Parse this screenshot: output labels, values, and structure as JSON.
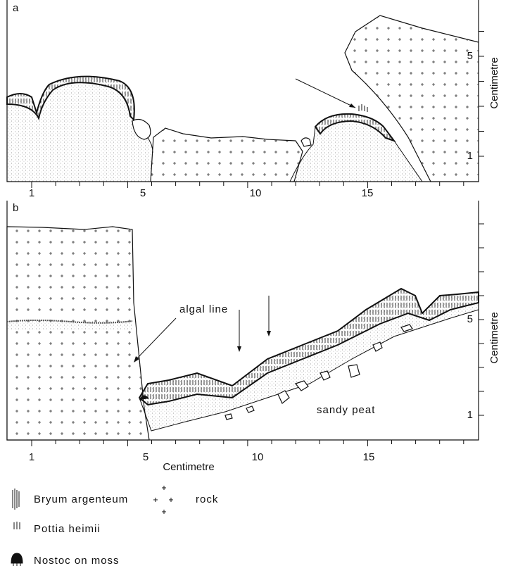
{
  "panels": [
    {
      "label": "a",
      "x_ticks": [
        "1",
        "5",
        "10",
        "15"
      ],
      "y_ticks": [
        "5",
        "1"
      ],
      "y_axis_title": "Centimetre"
    },
    {
      "label": "b",
      "x_ticks": [
        "1",
        "5",
        "10",
        "15"
      ],
      "y_ticks": [
        "5",
        "1"
      ],
      "y_axis_title": "Centimetre",
      "x_axis_title": "Centimetre",
      "annotations": [
        "algal line",
        "sandy peat"
      ]
    }
  ],
  "legend": [
    {
      "label": "Bryum argenteum"
    },
    {
      "label": "rock"
    },
    {
      "label": "Pottia heimii"
    },
    {
      "label": "Nostoc on moss"
    }
  ]
}
